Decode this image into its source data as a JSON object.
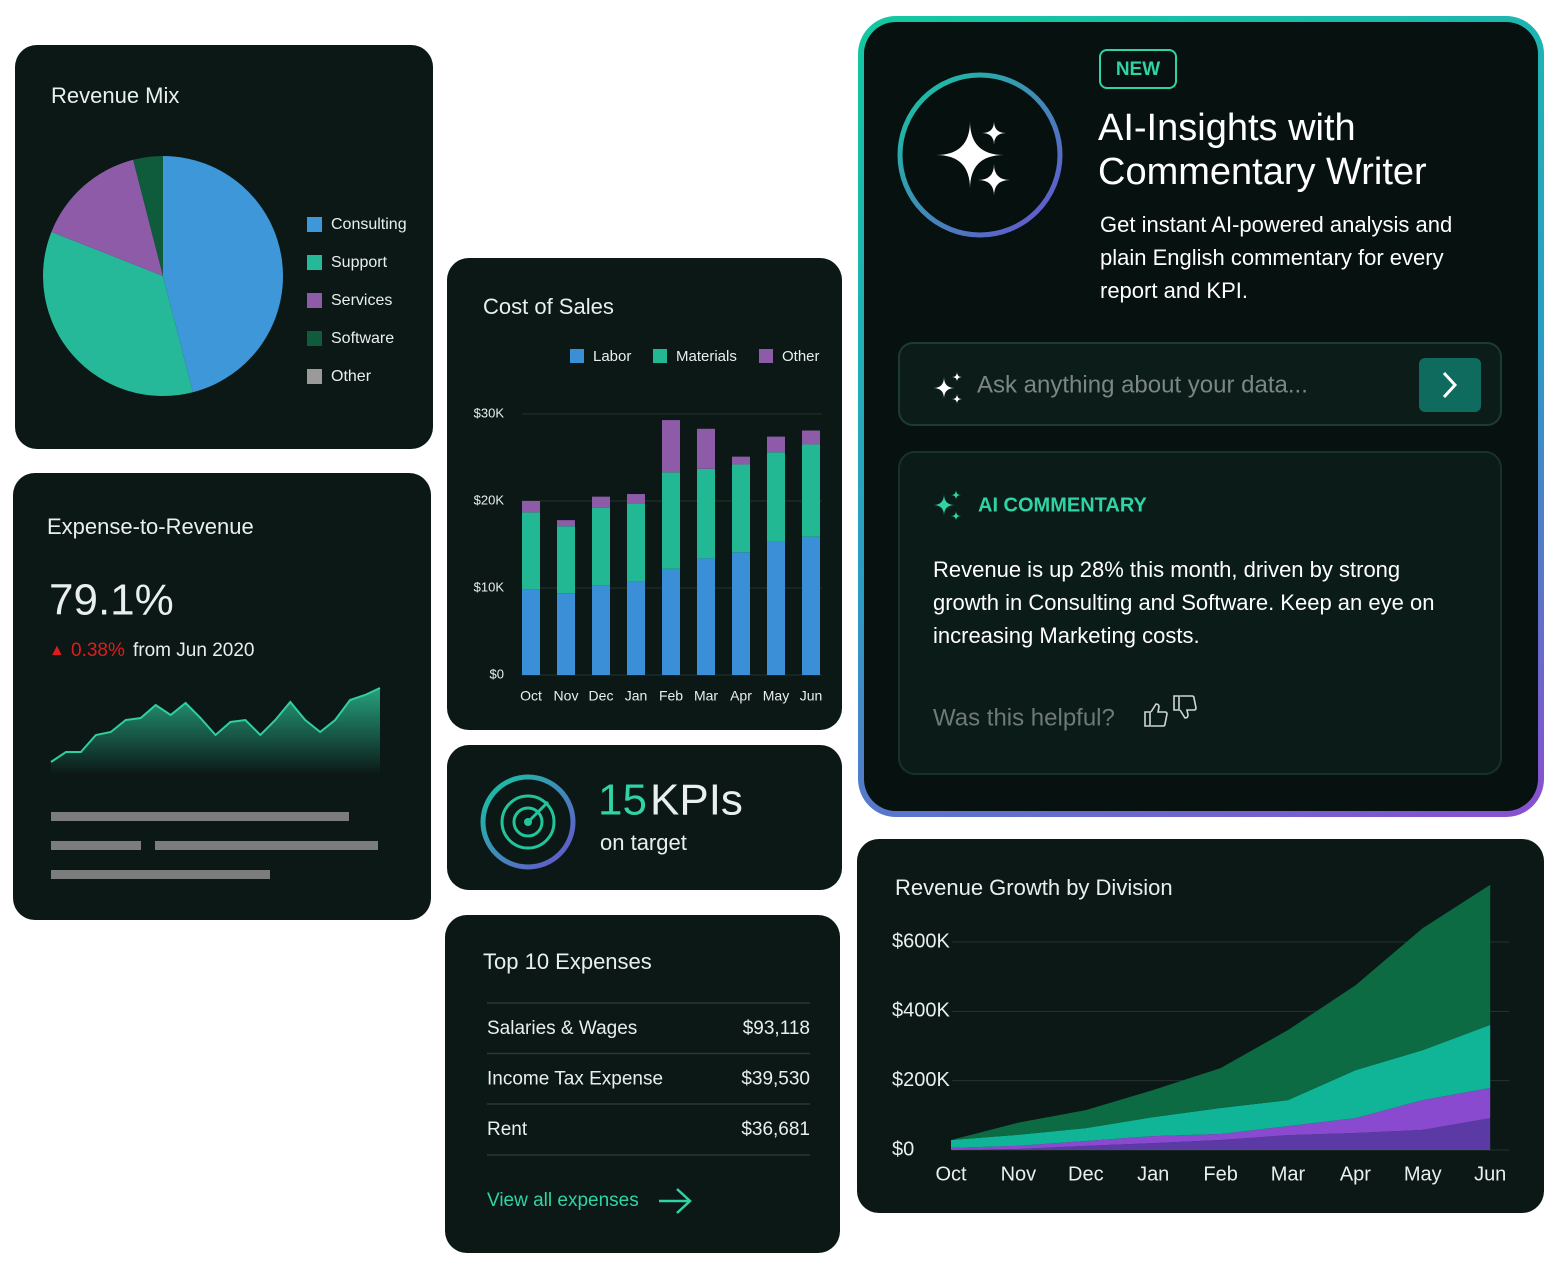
{
  "revenue_mix": {
    "type": "pie",
    "title": "Revenue Mix",
    "categories": [
      "Consulting",
      "Support",
      "Services",
      "Software",
      "Other"
    ],
    "values": [
      46,
      35,
      15,
      4,
      0
    ],
    "colors": [
      "#3d97d8",
      "#26b999",
      "#8e5ba8",
      "#0f5c3c",
      "#9a9a9a"
    ]
  },
  "expense_to_revenue": {
    "type": "area",
    "title": "Expense-to-Revenue",
    "value": "79.1%",
    "change_marker": "▲",
    "change": "0.38%",
    "change_text": "from Jun 2020",
    "values": [
      13,
      23,
      23,
      40,
      43,
      55,
      57,
      70,
      60,
      72,
      57,
      40,
      53,
      55,
      40,
      55,
      73,
      55,
      43,
      55,
      75,
      80,
      87
    ],
    "ylim": [
      0,
      100
    ],
    "color": "#2fcfa0"
  },
  "cost_of_sales": {
    "type": "bar",
    "stacked": true,
    "title": "Cost of Sales",
    "categories": [
      "Oct",
      "Nov",
      "Dec",
      "Jan",
      "Feb",
      "Mar",
      "Apr",
      "May",
      "Jun"
    ],
    "series": [
      {
        "name": "Labor",
        "color": "#3a8fd6",
        "values": [
          9800,
          9400,
          10300,
          10800,
          12200,
          13400,
          14100,
          15300,
          15900
        ]
      },
      {
        "name": "Materials",
        "color": "#22b894",
        "values": [
          8900,
          7700,
          8900,
          8900,
          11100,
          10300,
          10100,
          10300,
          10600
        ]
      },
      {
        "name": "Other",
        "color": "#8e5ba8",
        "values": [
          1300,
          700,
          1300,
          1100,
          6000,
          4600,
          900,
          1800,
          1600
        ]
      }
    ],
    "ylim": [
      0,
      30000
    ],
    "yticks": [
      {
        "value": 0,
        "label": "$0"
      },
      {
        "value": 10000,
        "label": "$10K"
      },
      {
        "value": 20000,
        "label": "$20K"
      },
      {
        "value": 30000,
        "label": "$30K"
      }
    ],
    "grid": true
  },
  "kpi": {
    "value": 15,
    "label": "KPIs",
    "sublabel": "on target"
  },
  "top_expenses": {
    "title": "Top 10 Expenses",
    "rows": [
      [
        "Salaries & Wages",
        "$93,118"
      ],
      [
        "Income Tax Expense",
        "$39,530"
      ],
      [
        "Rent",
        "$36,681"
      ]
    ],
    "link": "View all expenses"
  },
  "ai_insights": {
    "badge": "NEW",
    "title": "AI-Insights with Commentary Writer",
    "description": "Get instant AI-powered analysis and plain English commentary for every report and KPI.",
    "input_placeholder": "Ask anything about your data...",
    "commentary_heading": "AI COMMENTARY",
    "commentary": "Revenue is up 28% this month, driven by strong growth in Consulting and Software. Keep an eye on increasing Marketing costs.",
    "feedback_prompt": "Was this helpful?"
  },
  "revenue_growth": {
    "type": "area",
    "stacked": true,
    "title": "Revenue Growth by Division",
    "categories": [
      "Oct",
      "Nov",
      "Dec",
      "Jan",
      "Feb",
      "Mar",
      "Apr",
      "May",
      "Jun"
    ],
    "series": [
      {
        "color": "#5b3aa5",
        "values": [
          0,
          3000,
          12000,
          20000,
          29000,
          43000,
          49000,
          58000,
          92000
        ]
      },
      {
        "color": "#8a4ad0",
        "values": [
          6000,
          9000,
          14000,
          20000,
          17000,
          26000,
          43000,
          86000,
          87000
        ]
      },
      {
        "color": "#0fb596",
        "values": [
          23000,
          32000,
          37000,
          55000,
          75000,
          75000,
          138000,
          144000,
          182000
        ]
      },
      {
        "color": "#0d6b44",
        "values": [
          0,
          35000,
          52000,
          78000,
          115000,
          202000,
          245000,
          352000,
          404000
        ]
      }
    ],
    "ylim": [
      0,
      800000
    ],
    "yticks": [
      {
        "value": 0,
        "label": "$0"
      },
      {
        "value": 200000,
        "label": "$200K"
      },
      {
        "value": 400000,
        "label": "$400K"
      },
      {
        "value": 600000,
        "label": "$600K"
      }
    ],
    "grid": true
  }
}
